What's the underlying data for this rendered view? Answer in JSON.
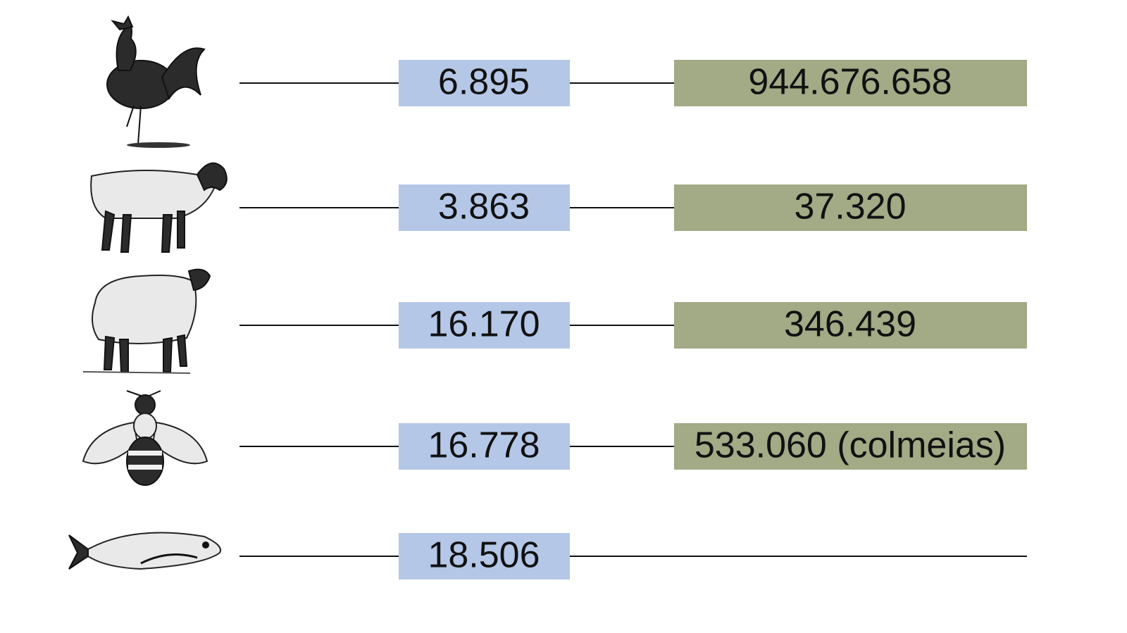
{
  "rows": [
    {
      "left": "6.895",
      "right": "944.676.658"
    },
    {
      "left": "3.863",
      "right": "37.320"
    },
    {
      "left": "16.170",
      "right": "346.439"
    },
    {
      "left": "16.778",
      "right": "533.060 (colmeias)"
    },
    {
      "left": "18.506"
    }
  ]
}
